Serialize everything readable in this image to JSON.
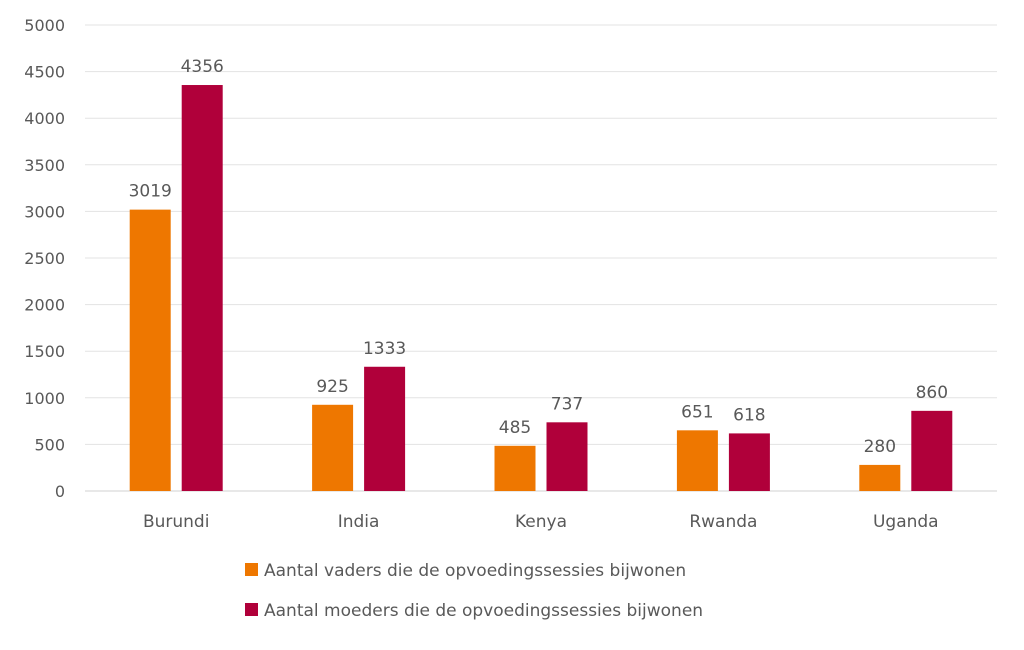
{
  "chart_data": {
    "type": "bar",
    "title": "",
    "xlabel": "",
    "ylabel": "",
    "ylim": [
      0,
      5000
    ],
    "yticks": [
      0,
      500,
      1000,
      1500,
      2000,
      2500,
      3000,
      3500,
      4000,
      4500,
      5000
    ],
    "grid": true,
    "legend_position": "bottom",
    "categories": [
      "Burundi",
      "India",
      "Kenya",
      "Rwanda",
      "Uganda"
    ],
    "series": [
      {
        "name": "Aantal vaders die de opvoedingssessies bijwonen",
        "color": "#EE7700",
        "values": [
          3019,
          925,
          485,
          651,
          280
        ]
      },
      {
        "name": "Aantal moeders die de opvoedingssessies bijwonen",
        "color": "#B0003A",
        "values": [
          4356,
          1333,
          737,
          618,
          860
        ]
      }
    ]
  }
}
